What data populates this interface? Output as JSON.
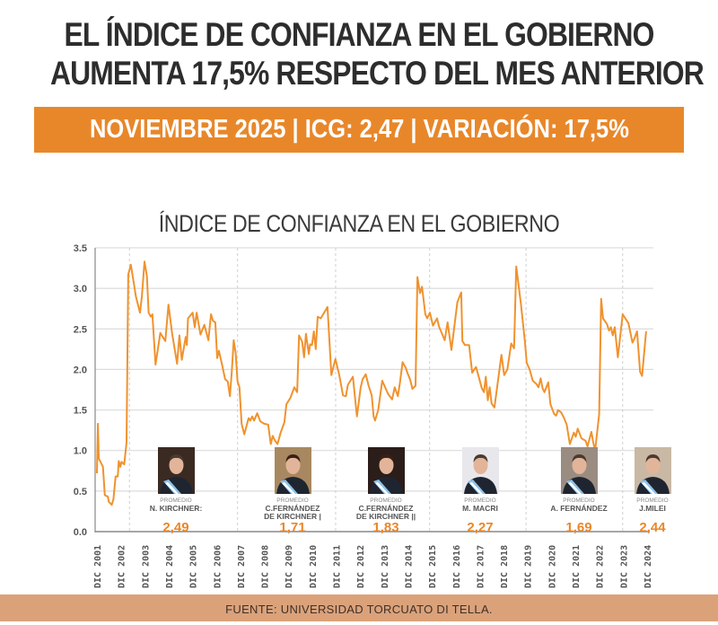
{
  "header": {
    "line1": "EL ÍNDICE DE CONFIANZA EN EL GOBIERNO",
    "line2": "AUMENTA 17,5% RESPECTO DEL MES ANTERIOR"
  },
  "banner": {
    "text": "NOVIEMBRE 2025 | ICG: 2,47 | VARIACIÓN: 17,5%",
    "color": "#e8872a"
  },
  "footer": {
    "source": "FUENTE: UNIVERSIDAD TORCUATO DI TELLA."
  },
  "presidents": [
    {
      "label": "PROMEDIO",
      "name": "N. KIRCHNER:",
      "name2": "",
      "average": "2,49",
      "photo": "portrait-photo"
    },
    {
      "label": "PROMEDIO",
      "name": "C.FERNÁNDEZ",
      "name2": "DE KIRCHNER |",
      "average": "1,71",
      "photo": "portrait-photo"
    },
    {
      "label": "PROMEDIO",
      "name": "C.FERNÁNDEZ",
      "name2": "DE KIRCHNER ||",
      "average": "1,83",
      "photo": "portrait-photo"
    },
    {
      "label": "PROMEDIO",
      "name": "M. MACRI",
      "name2": "",
      "average": "2,27",
      "photo": "portrait-photo"
    },
    {
      "label": "PROMEDIO",
      "name": "A. FERNÁNDEZ",
      "name2": "",
      "average": "1,69",
      "photo": "portrait-photo"
    },
    {
      "label": "PROMEDIO",
      "name": "J.MILEI",
      "name2": "",
      "average": "2,44",
      "photo": "portrait-photo"
    }
  ],
  "chart_data": {
    "type": "line",
    "title": "ÍNDICE DE CONFIANZA EN EL GOBIERNO",
    "xlabel": "",
    "ylabel": "",
    "ylim": [
      0,
      3.5
    ],
    "yticks": [
      "0.0",
      "0.5",
      "1.0",
      "1.5",
      "2.0",
      "2.5",
      "3.0",
      "3.5"
    ],
    "xticks": [
      "DIC 2001",
      "DIC 2002",
      "DIC 2003",
      "DIC 2004",
      "DIC 2005",
      "DIC 2006",
      "DIC 2007",
      "DIC 2008",
      "DIC 2009",
      "DIC 2010",
      "DIC 2011",
      "DIC 2012",
      "DIC 2013",
      "DIC 2014",
      "DIC 2015",
      "DIC 2016",
      "DIC 2017",
      "DIC 2018",
      "DIC 2019",
      "DIC 2020",
      "DIC 2021",
      "DIC 2022",
      "DIC 2023",
      "DIC 2024"
    ],
    "grid": "horizontal",
    "line_color": "#f0922e",
    "period_dividers": [
      2003.28,
      2007.8,
      2011.9,
      2015.83,
      2019.86,
      2023.9
    ],
    "series": [
      {
        "points": [
          [
            2001.92,
            0.72
          ],
          [
            2001.96,
            1.33
          ],
          [
            2002.0,
            0.9
          ],
          [
            2002.17,
            0.8
          ],
          [
            2002.25,
            0.45
          ],
          [
            2002.38,
            0.43
          ],
          [
            2002.41,
            0.37
          ],
          [
            2002.54,
            0.33
          ],
          [
            2002.61,
            0.4
          ],
          [
            2002.7,
            0.68
          ],
          [
            2002.79,
            0.68
          ],
          [
            2002.83,
            0.87
          ],
          [
            2002.9,
            0.8
          ],
          [
            2002.95,
            0.86
          ],
          [
            2003.06,
            0.83
          ],
          [
            2003.16,
            1.1
          ],
          [
            2003.23,
            3.17
          ],
          [
            2003.34,
            3.29
          ],
          [
            2003.47,
            3.05
          ],
          [
            2003.55,
            2.9
          ],
          [
            2003.72,
            2.7
          ],
          [
            2003.8,
            2.9
          ],
          [
            2003.91,
            3.33
          ],
          [
            2004.01,
            3.15
          ],
          [
            2004.08,
            2.7
          ],
          [
            2004.17,
            2.65
          ],
          [
            2004.24,
            2.68
          ],
          [
            2004.37,
            2.06
          ],
          [
            2004.57,
            2.45
          ],
          [
            2004.78,
            2.35
          ],
          [
            2004.91,
            2.8
          ],
          [
            2005.06,
            2.45
          ],
          [
            2005.27,
            2.07
          ],
          [
            2005.37,
            2.42
          ],
          [
            2005.47,
            2.12
          ],
          [
            2005.63,
            2.4
          ],
          [
            2005.68,
            2.3
          ],
          [
            2005.73,
            2.63
          ],
          [
            2005.92,
            2.7
          ],
          [
            2006.01,
            2.52
          ],
          [
            2006.09,
            2.7
          ],
          [
            2006.25,
            2.43
          ],
          [
            2006.41,
            2.55
          ],
          [
            2006.58,
            2.36
          ],
          [
            2006.69,
            2.68
          ],
          [
            2006.77,
            2.6
          ],
          [
            2006.87,
            2.58
          ],
          [
            2006.95,
            2.14
          ],
          [
            2007.02,
            2.23
          ],
          [
            2007.15,
            2.06
          ],
          [
            2007.28,
            1.88
          ],
          [
            2007.39,
            1.85
          ],
          [
            2007.48,
            1.67
          ],
          [
            2007.56,
            1.98
          ],
          [
            2007.64,
            2.36
          ],
          [
            2007.72,
            2.2
          ],
          [
            2007.8,
            1.85
          ],
          [
            2007.88,
            1.78
          ],
          [
            2007.97,
            1.33
          ],
          [
            2008.08,
            1.2
          ],
          [
            2008.26,
            1.4
          ],
          [
            2008.33,
            1.37
          ],
          [
            2008.41,
            1.42
          ],
          [
            2008.49,
            1.37
          ],
          [
            2008.62,
            1.46
          ],
          [
            2008.75,
            1.36
          ],
          [
            2008.91,
            1.33
          ],
          [
            2009.08,
            1.32
          ],
          [
            2009.19,
            1.08
          ],
          [
            2009.27,
            1.18
          ],
          [
            2009.35,
            1.13
          ],
          [
            2009.47,
            1.08
          ],
          [
            2009.6,
            1.22
          ],
          [
            2009.76,
            1.35
          ],
          [
            2009.84,
            1.57
          ],
          [
            2010.01,
            1.65
          ],
          [
            2010.17,
            1.78
          ],
          [
            2010.29,
            1.72
          ],
          [
            2010.37,
            2.42
          ],
          [
            2010.5,
            2.34
          ],
          [
            2010.58,
            2.15
          ],
          [
            2010.66,
            2.44
          ],
          [
            2010.78,
            2.19
          ],
          [
            2010.83,
            2.31
          ],
          [
            2010.91,
            2.3
          ],
          [
            2010.99,
            2.47
          ],
          [
            2011.07,
            2.25
          ],
          [
            2011.15,
            2.65
          ],
          [
            2011.28,
            2.63
          ],
          [
            2011.56,
            2.77
          ],
          [
            2011.72,
            1.93
          ],
          [
            2011.89,
            2.13
          ],
          [
            2012.05,
            1.93
          ],
          [
            2012.21,
            1.68
          ],
          [
            2012.33,
            1.67
          ],
          [
            2012.41,
            1.81
          ],
          [
            2012.62,
            1.91
          ],
          [
            2012.79,
            1.42
          ],
          [
            2012.95,
            1.78
          ],
          [
            2013.03,
            1.88
          ],
          [
            2013.16,
            1.94
          ],
          [
            2013.28,
            1.8
          ],
          [
            2013.41,
            1.68
          ],
          [
            2013.49,
            1.42
          ],
          [
            2013.55,
            1.37
          ],
          [
            2013.68,
            1.5
          ],
          [
            2013.85,
            1.86
          ],
          [
            2014.09,
            1.7
          ],
          [
            2014.26,
            1.63
          ],
          [
            2014.37,
            1.78
          ],
          [
            2014.5,
            1.67
          ],
          [
            2014.58,
            1.82
          ],
          [
            2014.7,
            2.09
          ],
          [
            2014.83,
            2.02
          ],
          [
            2014.91,
            1.95
          ],
          [
            2015.02,
            1.87
          ],
          [
            2015.11,
            1.76
          ],
          [
            2015.24,
            1.8
          ],
          [
            2015.32,
            3.14
          ],
          [
            2015.43,
            2.94
          ],
          [
            2015.51,
            3.02
          ],
          [
            2015.65,
            2.68
          ],
          [
            2015.73,
            2.63
          ],
          [
            2015.84,
            2.7
          ],
          [
            2015.97,
            2.54
          ],
          [
            2016.14,
            2.63
          ],
          [
            2016.22,
            2.53
          ],
          [
            2016.46,
            2.36
          ],
          [
            2016.58,
            2.58
          ],
          [
            2016.74,
            2.24
          ],
          [
            2016.99,
            2.83
          ],
          [
            2017.15,
            2.95
          ],
          [
            2017.2,
            2.35
          ],
          [
            2017.31,
            2.3
          ],
          [
            2017.48,
            2.3
          ],
          [
            2017.61,
            1.96
          ],
          [
            2017.77,
            2.03
          ],
          [
            2018.01,
            1.77
          ],
          [
            2018.1,
            1.72
          ],
          [
            2018.18,
            1.91
          ],
          [
            2018.26,
            1.62
          ],
          [
            2018.34,
            1.78
          ],
          [
            2018.42,
            1.58
          ],
          [
            2018.54,
            1.53
          ],
          [
            2018.83,
            2.18
          ],
          [
            2018.95,
            1.93
          ],
          [
            2019.08,
            2.0
          ],
          [
            2019.24,
            2.32
          ],
          [
            2019.36,
            2.26
          ],
          [
            2019.45,
            3.27
          ],
          [
            2019.65,
            2.8
          ],
          [
            2019.81,
            2.35
          ],
          [
            2019.89,
            2.08
          ],
          [
            2020.01,
            2.0
          ],
          [
            2020.14,
            1.86
          ],
          [
            2020.3,
            1.82
          ],
          [
            2020.38,
            1.78
          ],
          [
            2020.47,
            1.89
          ],
          [
            2020.55,
            1.77
          ],
          [
            2020.63,
            1.72
          ],
          [
            2020.79,
            1.84
          ],
          [
            2020.88,
            1.57
          ],
          [
            2021.04,
            1.45
          ],
          [
            2021.12,
            1.43
          ],
          [
            2021.2,
            1.5
          ],
          [
            2021.33,
            1.47
          ],
          [
            2021.45,
            1.4
          ],
          [
            2021.56,
            1.32
          ],
          [
            2021.69,
            1.08
          ],
          [
            2021.86,
            1.22
          ],
          [
            2021.94,
            1.17
          ],
          [
            2022.02,
            1.27
          ],
          [
            2022.18,
            1.15
          ],
          [
            2022.35,
            1.12
          ],
          [
            2022.43,
            1.05
          ],
          [
            2022.59,
            1.23
          ],
          [
            2022.67,
            1.1
          ],
          [
            2022.75,
            1.0
          ],
          [
            2022.92,
            1.45
          ],
          [
            2023.0,
            2.87
          ],
          [
            2023.08,
            2.63
          ],
          [
            2023.24,
            2.56
          ],
          [
            2023.33,
            2.48
          ],
          [
            2023.41,
            2.52
          ],
          [
            2023.49,
            2.42
          ],
          [
            2023.57,
            2.52
          ],
          [
            2023.7,
            2.15
          ],
          [
            2023.9,
            2.68
          ],
          [
            2024.14,
            2.57
          ],
          [
            2024.31,
            2.33
          ],
          [
            2024.39,
            2.38
          ],
          [
            2024.5,
            2.47
          ],
          [
            2024.63,
            1.97
          ],
          [
            2024.71,
            1.92
          ],
          [
            2024.88,
            2.47
          ]
        ]
      }
    ]
  }
}
